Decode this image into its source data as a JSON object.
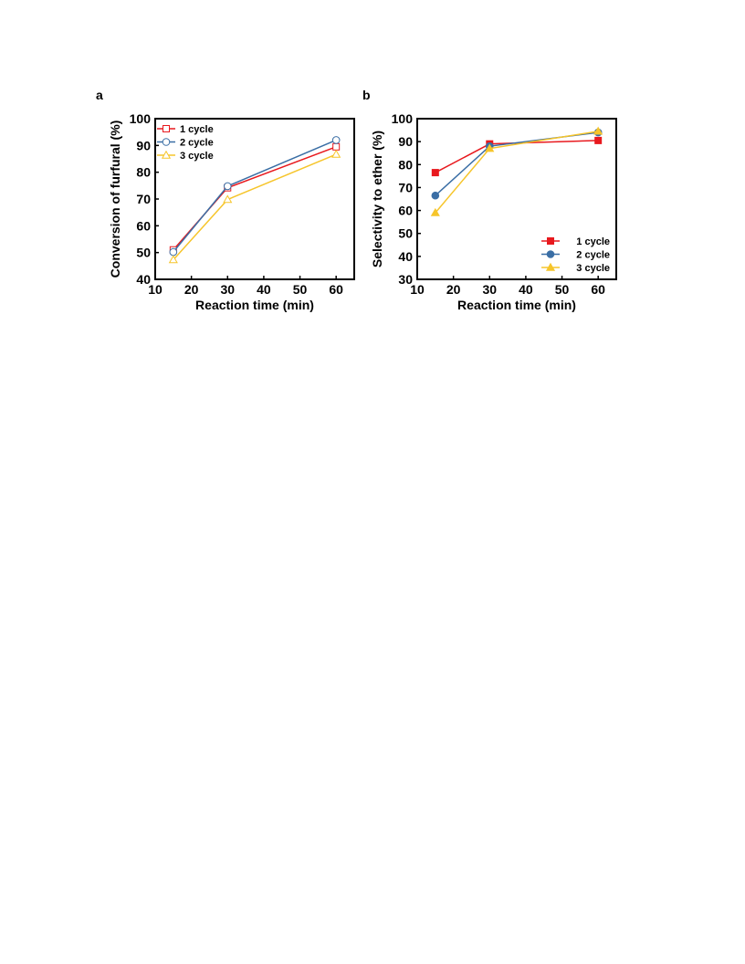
{
  "colors": {
    "red": "#e8191e",
    "blue": "#3a6ea5",
    "yellow": "#f6c52b",
    "axis": "#000000"
  },
  "chart_data": [
    {
      "panel_label": "a",
      "type": "line",
      "xlabel": "Reaction time (min)",
      "ylabel": "Conversion of furfural (%)",
      "xlim": [
        10,
        65
      ],
      "ylim": [
        40,
        100
      ],
      "xticks": [
        10,
        20,
        30,
        40,
        50,
        60
      ],
      "yticks": [
        40,
        50,
        60,
        70,
        80,
        90,
        100
      ],
      "marker_style": "open",
      "legend_position": "top-left",
      "x": [
        15,
        30,
        60
      ],
      "series": [
        {
          "name": "1 cycle",
          "marker": "square",
          "color": "#e8191e",
          "values": [
            51.0,
            74.2,
            89.5
          ]
        },
        {
          "name": "2 cycle",
          "marker": "circle",
          "color": "#3a6ea5",
          "values": [
            50.2,
            74.8,
            92.0
          ]
        },
        {
          "name": "3 cycle",
          "marker": "triangle",
          "color": "#f6c52b",
          "values": [
            47.3,
            69.8,
            86.7
          ]
        }
      ]
    },
    {
      "panel_label": "b",
      "type": "line",
      "xlabel": "Reaction time (min)",
      "ylabel": "Selectivity to ether (%)",
      "xlim": [
        10,
        65
      ],
      "ylim": [
        30,
        100
      ],
      "xticks": [
        10,
        20,
        30,
        40,
        50,
        60
      ],
      "yticks": [
        30,
        40,
        50,
        60,
        70,
        80,
        90,
        100
      ],
      "marker_style": "filled",
      "legend_position": "bottom-right",
      "x": [
        15,
        30,
        60
      ],
      "series": [
        {
          "name": "1 cycle",
          "marker": "square",
          "color": "#e8191e",
          "values": [
            76.5,
            89.0,
            90.5
          ]
        },
        {
          "name": "2 cycle",
          "marker": "circle",
          "color": "#3a6ea5",
          "values": [
            66.5,
            88.0,
            94.0
          ]
        },
        {
          "name": "3 cycle",
          "marker": "triangle",
          "color": "#f6c52b",
          "values": [
            59.0,
            87.0,
            94.5
          ]
        }
      ]
    }
  ]
}
